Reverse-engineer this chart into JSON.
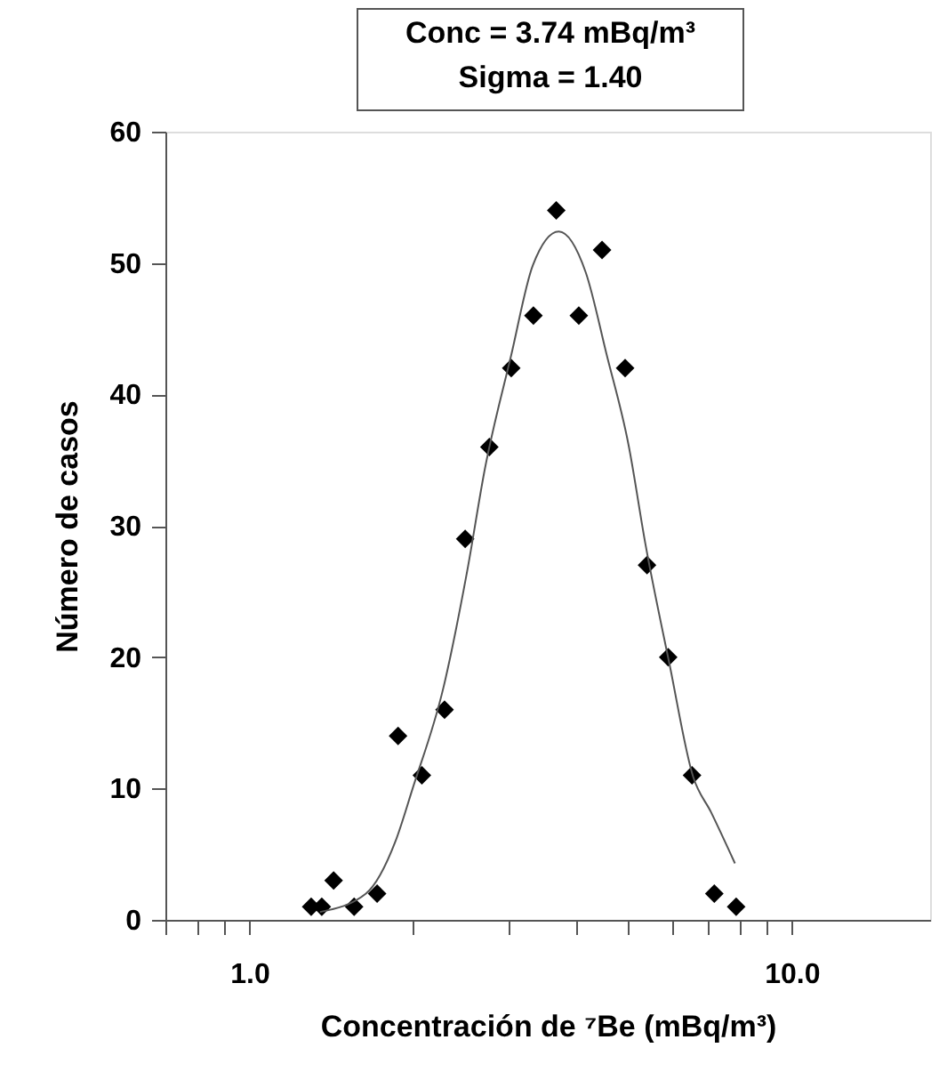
{
  "chart_data": {
    "type": "scatter",
    "xlabel": "Concentración de ⁷Be (mBq/m³)",
    "ylabel": "Número de casos",
    "annotations": [
      "Conc = 3.74 mBq/m³",
      "Sigma = 1.40"
    ],
    "log": "x",
    "xlim": [
      0.7,
      18
    ],
    "xticks": [
      {
        "value": 0.7,
        "label": null
      },
      {
        "value": 0.8,
        "label": null
      },
      {
        "value": 0.9,
        "label": null
      },
      {
        "value": 1,
        "label": "1.0"
      },
      {
        "value": 2,
        "label": null
      },
      {
        "value": 3,
        "label": null
      },
      {
        "value": 4,
        "label": null
      },
      {
        "value": 5,
        "label": null
      },
      {
        "value": 6,
        "label": null
      },
      {
        "value": 7,
        "label": null
      },
      {
        "value": 8,
        "label": null
      },
      {
        "value": 9,
        "label": null
      },
      {
        "value": 10,
        "label": "10.0"
      }
    ],
    "ylim": [
      0,
      60
    ],
    "yticks": [
      0,
      10,
      20,
      30,
      40,
      50,
      60
    ],
    "grid": false,
    "marker": "diamond",
    "series": [
      {
        "color": "#000000",
        "x": [
          1.3,
          1.36,
          1.43,
          1.56,
          1.72,
          1.88,
          2.08,
          2.29,
          2.5,
          2.77,
          3.04,
          3.34,
          3.68,
          4.05,
          4.47,
          4.93,
          5.41,
          5.92,
          6.55,
          7.2,
          7.9
        ],
        "values": [
          1,
          1,
          3,
          1,
          2,
          14,
          11,
          16,
          29,
          36,
          42,
          46,
          54,
          46,
          51,
          42,
          27,
          20,
          11,
          2,
          1
        ]
      },
      {
        "type": "line",
        "color": "#555555",
        "line_style": "solid",
        "marker": "none",
        "x": [
          1.35,
          1.64,
          1.86,
          2.0,
          2.28,
          2.52,
          2.72,
          3.04,
          3.33,
          3.72,
          4.17,
          4.56,
          5.0,
          5.38,
          5.95,
          6.58,
          7.1,
          7.86
        ],
        "values": [
          0.6,
          2,
          6,
          10,
          17.7,
          26.5,
          34.4,
          43,
          49.8,
          52.4,
          49.3,
          43,
          36.2,
          28.5,
          19.5,
          10.9,
          8.2,
          4.3
        ]
      }
    ]
  }
}
